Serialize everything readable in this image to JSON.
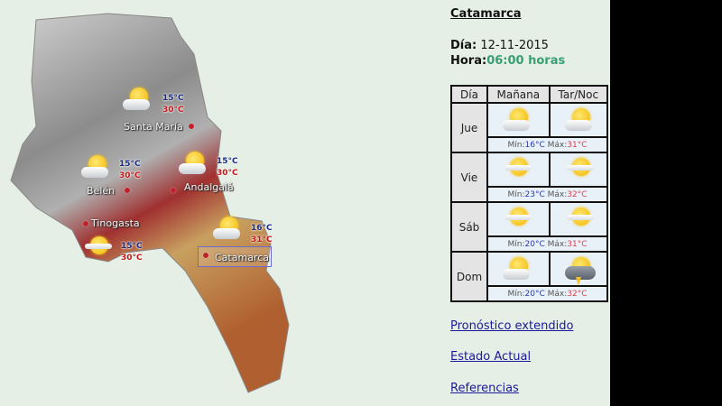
{
  "map": {
    "cities": [
      {
        "name": "Santa María",
        "min": "15°C",
        "max": "30°C",
        "icon": "sun-cloud"
      },
      {
        "name": "Belén",
        "min": "15°C",
        "max": "30°C",
        "icon": "sun-cloud"
      },
      {
        "name": "Andalgalá",
        "min": "15°C",
        "max": "30°C",
        "icon": "sun-cloud"
      },
      {
        "name": "Tinogasta",
        "min": "15°C",
        "max": "30°C",
        "icon": "sun-haze"
      },
      {
        "name": "Catamarca",
        "min": "16°C",
        "max": "31°C",
        "icon": "sun-cloud"
      }
    ]
  },
  "panel": {
    "title": "Catamarca",
    "dia_label": "Día:",
    "dia_value": "12-11-2015",
    "hora_label": "Hora:",
    "hora_value": "06:00 horas",
    "colors": {
      "hora": "#3aa070",
      "min": "#2a3ab0",
      "max": "#e04050"
    }
  },
  "table": {
    "headers": [
      "Día",
      "Mañana",
      "Tar/Noc"
    ],
    "min_label": "Mín:",
    "max_label": "Máx:",
    "rows": [
      {
        "day": "Jue",
        "morning": "sun-cloud",
        "afternoon": "sun-cloud",
        "min": "16°C",
        "max": "31°C"
      },
      {
        "day": "Vie",
        "morning": "sun-haze",
        "afternoon": "sun-haze",
        "min": "23°C",
        "max": "32°C"
      },
      {
        "day": "Sáb",
        "morning": "sun-haze",
        "afternoon": "sun-haze",
        "min": "20°C",
        "max": "31°C"
      },
      {
        "day": "Dom",
        "morning": "sun-cloud",
        "afternoon": "storm",
        "min": "20°C",
        "max": "32°C"
      }
    ]
  },
  "links": [
    "Pronóstico extendido",
    "Estado Actual",
    "Referencias"
  ]
}
